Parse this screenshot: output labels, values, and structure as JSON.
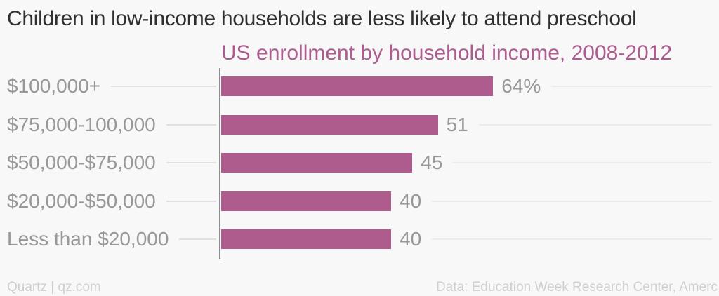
{
  "headline": "Children in low-income households are less likely to attend preschool",
  "chart_data": {
    "type": "bar",
    "orientation": "horizontal",
    "title": "US enrollment by household income, 2008-2012",
    "categories": [
      "$100,000+",
      "$75,000-100,000",
      "$50,000-$75,000",
      "$20,000-$50,000",
      "Less than $20,000"
    ],
    "values": [
      64,
      51,
      45,
      40,
      40
    ],
    "value_labels": [
      "64%",
      "51",
      "45",
      "40",
      "40"
    ],
    "unit": "%",
    "xlim": [
      0,
      64
    ],
    "grid": false,
    "legend": false,
    "xlabel": "",
    "ylabel": ""
  },
  "footer": {
    "left": "Quartz | qz.com",
    "right": "Data: Education Week Research Center, Amerc"
  },
  "colors": {
    "background": "#f8f8f8",
    "title_text": "#2f3032",
    "subtitle_text": "#ac5c8e",
    "bar": "#ad5c8d",
    "label_text": "#98989b",
    "leader_left": "#e1e1e1",
    "leader_right": "#ebebeb",
    "axis": "#8e8e8e",
    "footer_text": "#cfcfcf"
  }
}
